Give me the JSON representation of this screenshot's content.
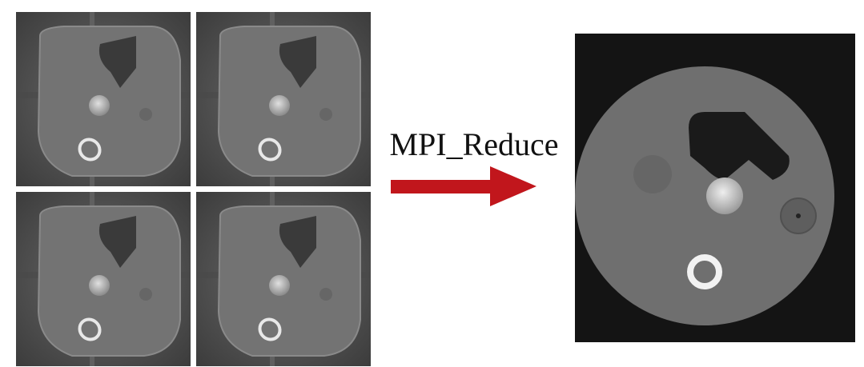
{
  "arrow": {
    "label": "MPI_Reduce"
  }
}
